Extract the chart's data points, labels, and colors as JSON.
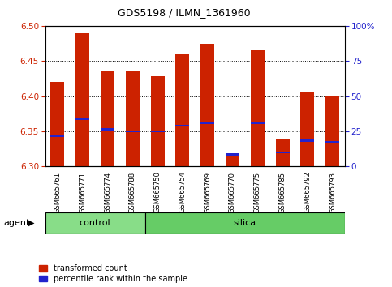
{
  "title": "GDS5198 / ILMN_1361960",
  "samples": [
    "GSM665761",
    "GSM665771",
    "GSM665774",
    "GSM665788",
    "GSM665750",
    "GSM665754",
    "GSM665769",
    "GSM665770",
    "GSM665775",
    "GSM665785",
    "GSM665792",
    "GSM665793"
  ],
  "groups": [
    "control",
    "control",
    "control",
    "control",
    "silica",
    "silica",
    "silica",
    "silica",
    "silica",
    "silica",
    "silica",
    "silica"
  ],
  "bar_tops": [
    6.42,
    6.49,
    6.435,
    6.435,
    6.428,
    6.46,
    6.475,
    6.315,
    6.465,
    6.34,
    6.405,
    6.4
  ],
  "percentile_values": [
    6.343,
    6.368,
    6.353,
    6.35,
    6.35,
    6.358,
    6.362,
    6.317,
    6.362,
    6.32,
    6.337,
    6.335
  ],
  "bar_bottom": 6.3,
  "ylim_left": [
    6.3,
    6.5
  ],
  "ylim_right": [
    0,
    100
  ],
  "yticks_left": [
    6.3,
    6.35,
    6.4,
    6.45,
    6.5
  ],
  "yticks_right": [
    0,
    25,
    50,
    75,
    100
  ],
  "ytick_labels_right": [
    "0",
    "25",
    "50",
    "75",
    "100%"
  ],
  "bar_color": "#cc2200",
  "percentile_color": "#2222cc",
  "control_color": "#88dd88",
  "silica_color": "#66cc66",
  "bar_width": 0.55,
  "agent_label": "agent",
  "legend_items": [
    "transformed count",
    "percentile rank within the sample"
  ],
  "grid_color": "#000000",
  "bg_color": "#ffffff",
  "n_control": 4,
  "n_silica": 8
}
